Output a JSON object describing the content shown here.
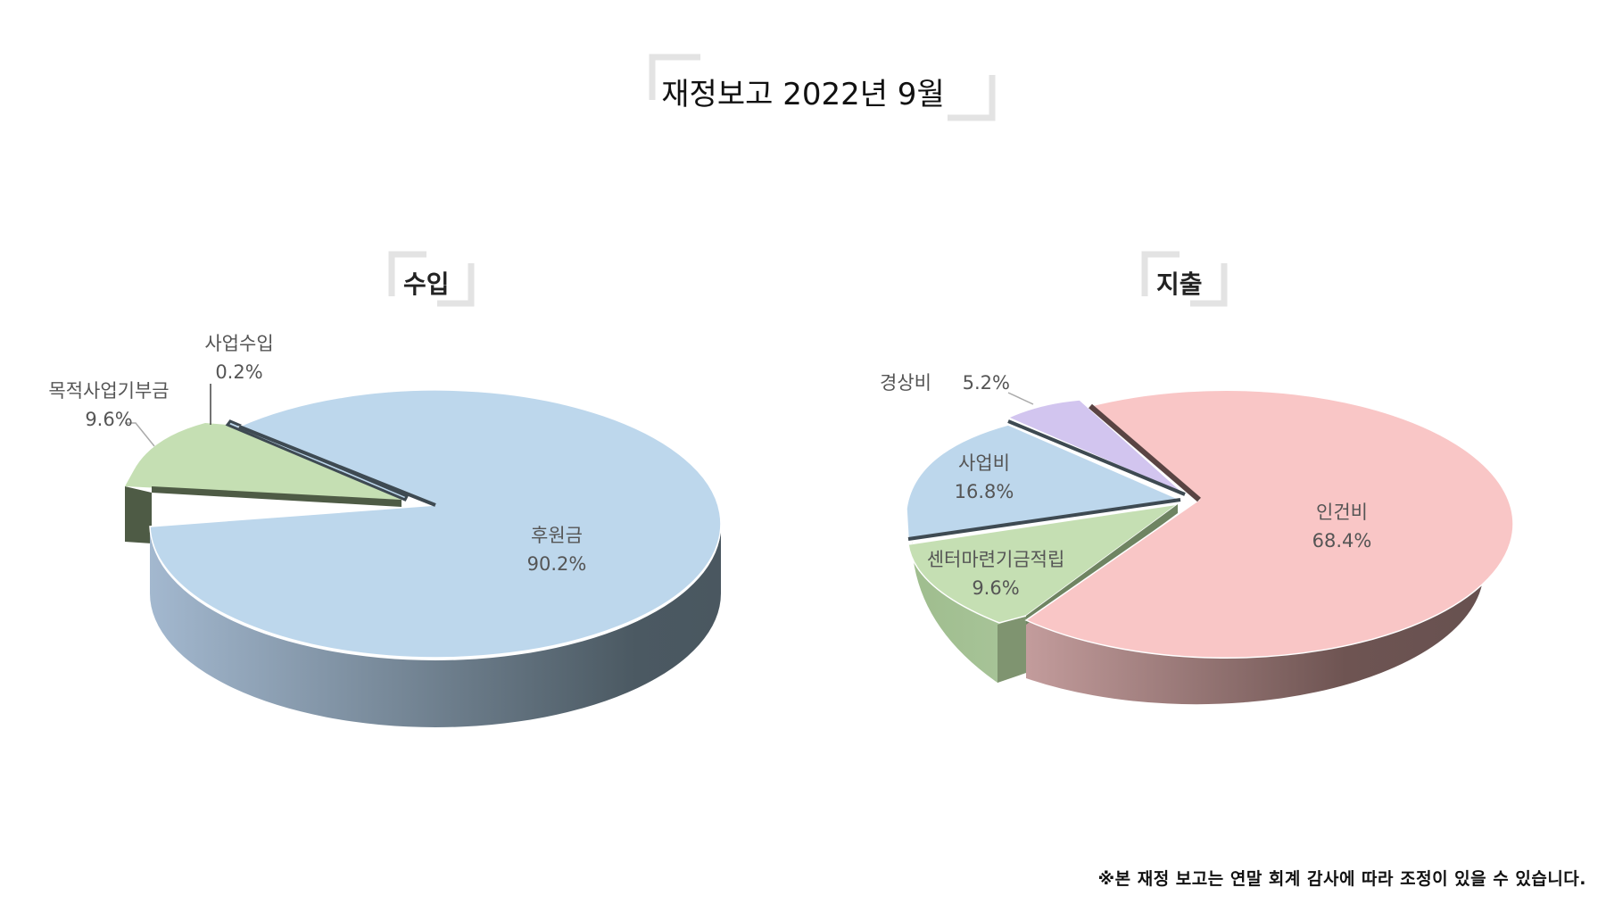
{
  "page_title": "재정보고 2022년 9월",
  "footnote": "※본 재정 보고는 연말 회계 감사에 따라 조정이 있을 수 있습니다.",
  "chart_data": [
    {
      "type": "pie",
      "title": "수입",
      "style": "3d-exploded",
      "slices": [
        {
          "name": "후원금",
          "value": 90.2,
          "label": "90.2%",
          "color": "#bdd7ec"
        },
        {
          "name": "목적사업기부금",
          "value": 9.6,
          "label": "9.6%",
          "color": "#c5dfb3"
        },
        {
          "name": "사업수입",
          "value": 0.2,
          "label": "0.2%",
          "color": "#bdd7ec"
        }
      ]
    },
    {
      "type": "pie",
      "title": "지출",
      "style": "3d-exploded",
      "slices": [
        {
          "name": "인건비",
          "value": 68.4,
          "label": "68.4%",
          "color": "#f9c6c6"
        },
        {
          "name": "센터마련기금적립",
          "value": 9.6,
          "label": "9.6%",
          "color": "#c5dfb3"
        },
        {
          "name": "사업비",
          "value": 16.8,
          "label": "16.8%",
          "color": "#bdd7ec"
        },
        {
          "name": "경상비",
          "value": 5.2,
          "label": "5.2%",
          "color": "#d2c5ef"
        }
      ]
    }
  ]
}
